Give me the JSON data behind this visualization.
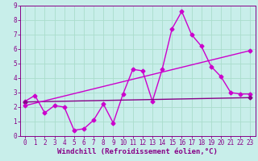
{
  "bg_color": "#c8eeea",
  "grid_color": "#aaddcc",
  "line_color1": "#cc00cc",
  "line_color2": "#880088",
  "line_color3": "#cc00cc",
  "xlabel": "Windchill (Refroidissement éolien,°C)",
  "xlim": [
    -0.5,
    23.5
  ],
  "ylim": [
    0,
    9
  ],
  "xticks": [
    0,
    1,
    2,
    3,
    4,
    5,
    6,
    7,
    8,
    9,
    10,
    11,
    12,
    13,
    14,
    15,
    16,
    17,
    18,
    19,
    20,
    21,
    22,
    23
  ],
  "yticks": [
    0,
    1,
    2,
    3,
    4,
    5,
    6,
    7,
    8,
    9
  ],
  "series1_x": [
    0,
    1,
    2,
    3,
    4,
    5,
    6,
    7,
    8,
    9,
    10,
    11,
    12,
    13,
    14,
    15,
    16,
    17,
    18,
    19,
    20,
    21,
    22,
    23
  ],
  "series1_y": [
    2.4,
    2.8,
    1.6,
    2.1,
    2.0,
    0.4,
    0.5,
    1.1,
    2.2,
    0.9,
    2.9,
    4.6,
    4.5,
    2.4,
    4.6,
    7.4,
    8.6,
    7.0,
    6.2,
    4.8,
    4.1,
    3.0,
    2.9,
    2.9
  ],
  "series2_x": [
    0,
    23
  ],
  "series2_y": [
    2.35,
    2.65
  ],
  "series3_x": [
    0,
    23
  ],
  "series3_y": [
    2.1,
    5.9
  ],
  "markersize": 2.5,
  "linewidth": 1.0,
  "tick_fontsize": 5.5,
  "label_fontsize": 6.5
}
